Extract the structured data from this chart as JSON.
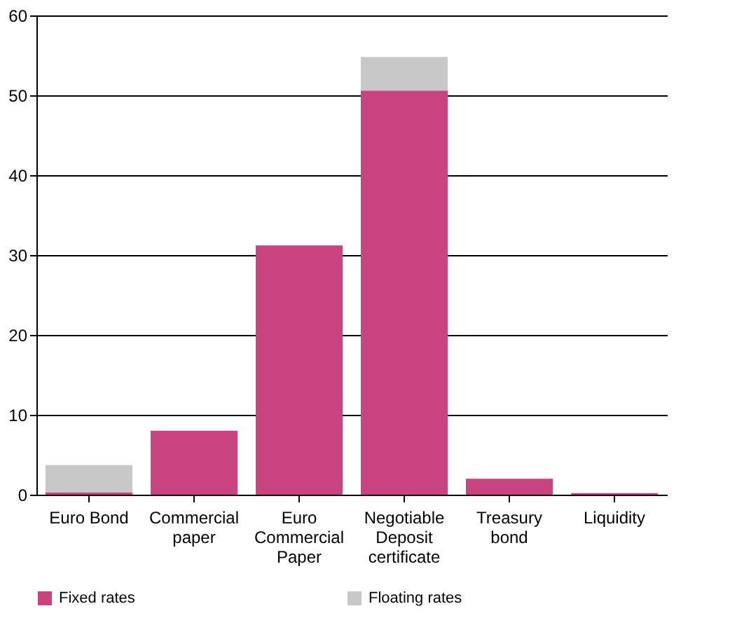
{
  "chart_data": {
    "type": "bar",
    "stacked": true,
    "categories": [
      "Euro Bond",
      "Commercial\npaper",
      "Euro\nCommercial\nPaper",
      "Negotiable\nDeposit\ncertificate",
      "Treasury\nbond",
      "Liquidity"
    ],
    "series": [
      {
        "name": "Fixed rates",
        "color": "#c8447e",
        "values": [
          0.3,
          8.0,
          31.2,
          50.6,
          2.0,
          0.2
        ]
      },
      {
        "name": "Floating rates",
        "color": "#c8c8c8",
        "values": [
          3.4,
          0,
          0,
          4.2,
          0,
          0
        ]
      }
    ],
    "ylim": [
      0,
      60
    ],
    "yticks": [
      0,
      10,
      20,
      30,
      40,
      50,
      60
    ],
    "grid": "y",
    "legend": "bottom"
  }
}
